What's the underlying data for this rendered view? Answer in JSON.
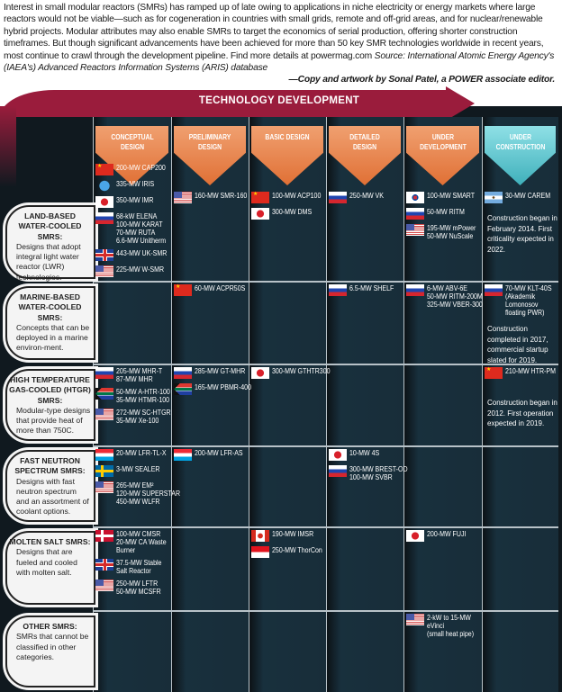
{
  "intro": {
    "text": "Interest in small modular reactors (SMRs) has ramped up of late owing to applications in niche electricity or energy markets where large reactors would not be viable—such as for cogeneration in countries with small grids, remote and off-grid areas, and for nuclear/renewable hybrid projects. Modular attributes may also enable SMRs to target the economics of serial production, offering shorter construction timeframes. But though significant advancements have been achieved for more than 50 key SMR technologies worldwide in recent years, most continue to crawl through the development pipeline. Find more details at powermag.com",
    "source": "Source: International Atomic Energy Agency's (IAEA's) Advanced Reactors Information Systems (ARIS) database",
    "credit": "—Copy and artwork by Sonal Patel, a POWER associate editor."
  },
  "banner": {
    "title": "TECHNOLOGY DEVELOPMENT",
    "color": "#9a1c3c"
  },
  "colors": {
    "stage": "#e8804a",
    "construction": "#5bc0c8",
    "background": "#182d39"
  },
  "stages": [
    "CONCEPTUAL DESIGN",
    "PRELIMINARY DESIGN",
    "BASIC DESIGN",
    "DETAILED DESIGN",
    "UNDER DEVELOPMENT",
    "UNDER CONSTRUCTION"
  ],
  "rows": [
    {
      "title": "LAND-BASED WATER-COOLED SMRS:",
      "desc": "Designs that adopt integral light water reactor (LWR) technologies.",
      "cells": [
        [
          {
            "flag": "china",
            "lines": [
              "200-MW CAP200"
            ]
          },
          {
            "flag": "un",
            "lines": [
              "335-MW IRIS"
            ]
          },
          {
            "flag": "japan",
            "lines": [
              "350-MW IMR"
            ]
          },
          {
            "flag": "russia",
            "lines": [
              "68-kW ELENA",
              "100-MW KARAT",
              "70-MW RUTA",
              "6.6-MW Unitherm"
            ]
          },
          {
            "flag": "uk",
            "lines": [
              "443-MW UK-SMR"
            ]
          },
          {
            "flag": "usa",
            "lines": [
              "225-MW W-SMR"
            ]
          }
        ],
        [
          {
            "flag": "usa",
            "lines": [
              "160-MW SMR-160"
            ]
          }
        ],
        [
          {
            "flag": "china",
            "lines": [
              "100-MW ACP100"
            ]
          },
          {
            "flag": "japan",
            "lines": [
              "300-MW DMS"
            ]
          }
        ],
        [
          {
            "flag": "russia",
            "lines": [
              "250-MW VK"
            ]
          }
        ],
        [
          {
            "flag": "korea",
            "lines": [
              "100-MW SMART"
            ]
          },
          {
            "flag": "russia",
            "lines": [
              "50-MW RITM"
            ]
          },
          {
            "flag": "usa",
            "lines": [
              "195-MW mPower",
              "50-MW NuScale"
            ]
          }
        ],
        [
          {
            "flag": "argentina",
            "lines": [
              "30-MW CAREM"
            ]
          }
        ]
      ],
      "note": "Construction began in February 2014. First criticality expected in 2022."
    },
    {
      "title": "MARINE-BASED WATER-COOLED SMRS:",
      "desc": "Concepts that can be deployed in a marine environ-ment.",
      "cells": [
        [],
        [
          {
            "flag": "china",
            "lines": [
              "60-MW ACPR50S"
            ]
          }
        ],
        [],
        [
          {
            "flag": "russia",
            "lines": [
              "6.5-MW SHELF"
            ]
          }
        ],
        [
          {
            "flag": "russia",
            "lines": [
              "6-MW ABV-6E",
              "50-MW RITM-200M",
              "325-MW VBER-300"
            ]
          }
        ],
        [
          {
            "flag": "russia",
            "lines": [
              "70-MW KLT-40S",
              "(Akademik",
              "Lomonosov",
              "floating PWR)"
            ]
          }
        ]
      ],
      "note": "Construction completed in 2017, commercial startup slated for 2019."
    },
    {
      "title": "HIGH TEMPERATURE GAS-COOLED (HTGR) SMRS:",
      "desc": "Modular-type designs that provide heat of more than 750C.",
      "cells": [
        [
          {
            "flag": "russia",
            "lines": [
              "205-MW MHR-T",
              "87-MW MHR"
            ]
          },
          {
            "flag": "southafrica",
            "lines": [
              "50-MW A-HTR-100",
              "35-MW HTMR-100"
            ]
          },
          {
            "flag": "usa",
            "lines": [
              "272-MW SC-HTGR",
              "35-MW Xe-100"
            ]
          }
        ],
        [
          {
            "flag": "russia",
            "lines": [
              "285-MW GT-MHR"
            ]
          },
          {
            "flag": "southafrica",
            "lines": [
              "165-MW PBMR-400"
            ]
          }
        ],
        [
          {
            "flag": "japan",
            "lines": [
              "300-MW GTHTR300"
            ]
          }
        ],
        [],
        [],
        [
          {
            "flag": "china",
            "lines": [
              "210-MW HTR-PM"
            ]
          }
        ]
      ],
      "note": "Construction began in 2012. First operation expected in 2019."
    },
    {
      "title": "FAST NEUTRON SPECTRUM SMRS:",
      "desc": "Designs with fast neutron spectrum and an assortment of coolant options.",
      "cells": [
        [
          {
            "flag": "luxembourg",
            "lines": [
              "20-MW LFR-TL-X"
            ]
          },
          {
            "flag": "sweden",
            "lines": [
              "3-MW SEALER"
            ]
          },
          {
            "flag": "usa",
            "lines": [
              "265-MW EM²",
              "120-MW SUPERSTAR",
              "450-MW WLFR"
            ]
          }
        ],
        [
          {
            "flag": "luxembourg",
            "lines": [
              "200-MW LFR-AS"
            ]
          }
        ],
        [],
        [
          {
            "flag": "japan",
            "lines": [
              "10-MW 4S"
            ]
          },
          {
            "flag": "russia",
            "lines": [
              "300-MW BREST-OD",
              "100-MW SVBR"
            ]
          }
        ],
        [],
        []
      ],
      "note": ""
    },
    {
      "title": "MOLTEN SALT SMRS:",
      "desc": "Designs that are fueled and cooled with molten salt.",
      "cells": [
        [
          {
            "flag": "denmark",
            "lines": [
              "100-MW CMSR",
              "20-MW CA Waste",
              "Burner"
            ]
          },
          {
            "flag": "uk",
            "lines": [
              "37.5-MW Stable",
              "Salt Reactor"
            ]
          },
          {
            "flag": "usa",
            "lines": [
              "250-MW LFTR",
              "50-MW MCSFR"
            ]
          }
        ],
        [],
        [
          {
            "flag": "canada",
            "lines": [
              "190-MW IMSR"
            ]
          },
          {
            "flag": "indonesia",
            "lines": [
              "250-MW ThorCon"
            ]
          }
        ],
        [],
        [
          {
            "flag": "japan",
            "lines": [
              "200-MW FUJI"
            ]
          }
        ],
        []
      ],
      "note": ""
    },
    {
      "title": "OTHER SMRS:",
      "desc": "SMRs that cannot be classified in other categories.",
      "cells": [
        [],
        [],
        [],
        [],
        [
          {
            "flag": "usa",
            "lines": [
              "2-kW to 15-MW",
              "eVinci",
              "(small heat pipe)"
            ]
          }
        ],
        []
      ],
      "note": ""
    }
  ]
}
